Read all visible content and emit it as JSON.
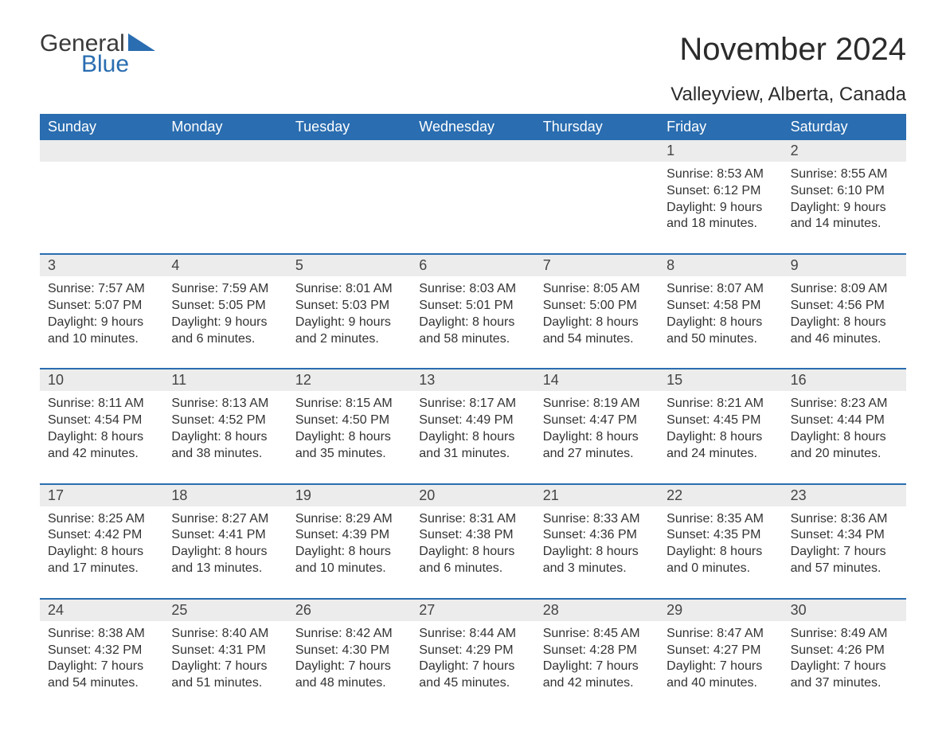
{
  "logo": {
    "general": "General",
    "blue": "Blue"
  },
  "title": "November 2024",
  "location": "Valleyview, Alberta, Canada",
  "colors": {
    "header_bg": "#2a6db0",
    "header_text": "#ffffff",
    "daynum_bg": "#ececec",
    "rule": "#2a6db0",
    "text": "#333333",
    "background": "#ffffff"
  },
  "day_headers": [
    "Sunday",
    "Monday",
    "Tuesday",
    "Wednesday",
    "Thursday",
    "Friday",
    "Saturday"
  ],
  "weeks": [
    {
      "nums": [
        "",
        "",
        "",
        "",
        "",
        "1",
        "2"
      ],
      "cells": [
        {
          "sunrise": "",
          "sunset": "",
          "daylight1": "",
          "daylight2": ""
        },
        {
          "sunrise": "",
          "sunset": "",
          "daylight1": "",
          "daylight2": ""
        },
        {
          "sunrise": "",
          "sunset": "",
          "daylight1": "",
          "daylight2": ""
        },
        {
          "sunrise": "",
          "sunset": "",
          "daylight1": "",
          "daylight2": ""
        },
        {
          "sunrise": "",
          "sunset": "",
          "daylight1": "",
          "daylight2": ""
        },
        {
          "sunrise": "Sunrise: 8:53 AM",
          "sunset": "Sunset: 6:12 PM",
          "daylight1": "Daylight: 9 hours",
          "daylight2": "and 18 minutes."
        },
        {
          "sunrise": "Sunrise: 8:55 AM",
          "sunset": "Sunset: 6:10 PM",
          "daylight1": "Daylight: 9 hours",
          "daylight2": "and 14 minutes."
        }
      ]
    },
    {
      "nums": [
        "3",
        "4",
        "5",
        "6",
        "7",
        "8",
        "9"
      ],
      "cells": [
        {
          "sunrise": "Sunrise: 7:57 AM",
          "sunset": "Sunset: 5:07 PM",
          "daylight1": "Daylight: 9 hours",
          "daylight2": "and 10 minutes."
        },
        {
          "sunrise": "Sunrise: 7:59 AM",
          "sunset": "Sunset: 5:05 PM",
          "daylight1": "Daylight: 9 hours",
          "daylight2": "and 6 minutes."
        },
        {
          "sunrise": "Sunrise: 8:01 AM",
          "sunset": "Sunset: 5:03 PM",
          "daylight1": "Daylight: 9 hours",
          "daylight2": "and 2 minutes."
        },
        {
          "sunrise": "Sunrise: 8:03 AM",
          "sunset": "Sunset: 5:01 PM",
          "daylight1": "Daylight: 8 hours",
          "daylight2": "and 58 minutes."
        },
        {
          "sunrise": "Sunrise: 8:05 AM",
          "sunset": "Sunset: 5:00 PM",
          "daylight1": "Daylight: 8 hours",
          "daylight2": "and 54 minutes."
        },
        {
          "sunrise": "Sunrise: 8:07 AM",
          "sunset": "Sunset: 4:58 PM",
          "daylight1": "Daylight: 8 hours",
          "daylight2": "and 50 minutes."
        },
        {
          "sunrise": "Sunrise: 8:09 AM",
          "sunset": "Sunset: 4:56 PM",
          "daylight1": "Daylight: 8 hours",
          "daylight2": "and 46 minutes."
        }
      ]
    },
    {
      "nums": [
        "10",
        "11",
        "12",
        "13",
        "14",
        "15",
        "16"
      ],
      "cells": [
        {
          "sunrise": "Sunrise: 8:11 AM",
          "sunset": "Sunset: 4:54 PM",
          "daylight1": "Daylight: 8 hours",
          "daylight2": "and 42 minutes."
        },
        {
          "sunrise": "Sunrise: 8:13 AM",
          "sunset": "Sunset: 4:52 PM",
          "daylight1": "Daylight: 8 hours",
          "daylight2": "and 38 minutes."
        },
        {
          "sunrise": "Sunrise: 8:15 AM",
          "sunset": "Sunset: 4:50 PM",
          "daylight1": "Daylight: 8 hours",
          "daylight2": "and 35 minutes."
        },
        {
          "sunrise": "Sunrise: 8:17 AM",
          "sunset": "Sunset: 4:49 PM",
          "daylight1": "Daylight: 8 hours",
          "daylight2": "and 31 minutes."
        },
        {
          "sunrise": "Sunrise: 8:19 AM",
          "sunset": "Sunset: 4:47 PM",
          "daylight1": "Daylight: 8 hours",
          "daylight2": "and 27 minutes."
        },
        {
          "sunrise": "Sunrise: 8:21 AM",
          "sunset": "Sunset: 4:45 PM",
          "daylight1": "Daylight: 8 hours",
          "daylight2": "and 24 minutes."
        },
        {
          "sunrise": "Sunrise: 8:23 AM",
          "sunset": "Sunset: 4:44 PM",
          "daylight1": "Daylight: 8 hours",
          "daylight2": "and 20 minutes."
        }
      ]
    },
    {
      "nums": [
        "17",
        "18",
        "19",
        "20",
        "21",
        "22",
        "23"
      ],
      "cells": [
        {
          "sunrise": "Sunrise: 8:25 AM",
          "sunset": "Sunset: 4:42 PM",
          "daylight1": "Daylight: 8 hours",
          "daylight2": "and 17 minutes."
        },
        {
          "sunrise": "Sunrise: 8:27 AM",
          "sunset": "Sunset: 4:41 PM",
          "daylight1": "Daylight: 8 hours",
          "daylight2": "and 13 minutes."
        },
        {
          "sunrise": "Sunrise: 8:29 AM",
          "sunset": "Sunset: 4:39 PM",
          "daylight1": "Daylight: 8 hours",
          "daylight2": "and 10 minutes."
        },
        {
          "sunrise": "Sunrise: 8:31 AM",
          "sunset": "Sunset: 4:38 PM",
          "daylight1": "Daylight: 8 hours",
          "daylight2": "and 6 minutes."
        },
        {
          "sunrise": "Sunrise: 8:33 AM",
          "sunset": "Sunset: 4:36 PM",
          "daylight1": "Daylight: 8 hours",
          "daylight2": "and 3 minutes."
        },
        {
          "sunrise": "Sunrise: 8:35 AM",
          "sunset": "Sunset: 4:35 PM",
          "daylight1": "Daylight: 8 hours",
          "daylight2": "and 0 minutes."
        },
        {
          "sunrise": "Sunrise: 8:36 AM",
          "sunset": "Sunset: 4:34 PM",
          "daylight1": "Daylight: 7 hours",
          "daylight2": "and 57 minutes."
        }
      ]
    },
    {
      "nums": [
        "24",
        "25",
        "26",
        "27",
        "28",
        "29",
        "30"
      ],
      "cells": [
        {
          "sunrise": "Sunrise: 8:38 AM",
          "sunset": "Sunset: 4:32 PM",
          "daylight1": "Daylight: 7 hours",
          "daylight2": "and 54 minutes."
        },
        {
          "sunrise": "Sunrise: 8:40 AM",
          "sunset": "Sunset: 4:31 PM",
          "daylight1": "Daylight: 7 hours",
          "daylight2": "and 51 minutes."
        },
        {
          "sunrise": "Sunrise: 8:42 AM",
          "sunset": "Sunset: 4:30 PM",
          "daylight1": "Daylight: 7 hours",
          "daylight2": "and 48 minutes."
        },
        {
          "sunrise": "Sunrise: 8:44 AM",
          "sunset": "Sunset: 4:29 PM",
          "daylight1": "Daylight: 7 hours",
          "daylight2": "and 45 minutes."
        },
        {
          "sunrise": "Sunrise: 8:45 AM",
          "sunset": "Sunset: 4:28 PM",
          "daylight1": "Daylight: 7 hours",
          "daylight2": "and 42 minutes."
        },
        {
          "sunrise": "Sunrise: 8:47 AM",
          "sunset": "Sunset: 4:27 PM",
          "daylight1": "Daylight: 7 hours",
          "daylight2": "and 40 minutes."
        },
        {
          "sunrise": "Sunrise: 8:49 AM",
          "sunset": "Sunset: 4:26 PM",
          "daylight1": "Daylight: 7 hours",
          "daylight2": "and 37 minutes."
        }
      ]
    }
  ]
}
